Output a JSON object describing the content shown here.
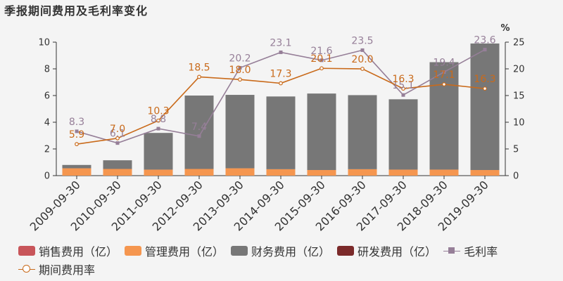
{
  "title": "季报期间费用及毛利率变化",
  "chart_data": {
    "type": "bar",
    "stacked": true,
    "categories": [
      "2009-09-30",
      "2010-09-30",
      "2011-09-30",
      "2012-09-30",
      "2013-09-30",
      "2014-09-30",
      "2015-09-30",
      "2016-09-30",
      "2017-09-30",
      "2018-09-30",
      "2019-09-30"
    ],
    "y_left": {
      "min": 0,
      "max": 10,
      "ticks": [
        0,
        2,
        4,
        6,
        8,
        10
      ]
    },
    "y_right": {
      "min": 0,
      "max": 25,
      "ticks": [
        0,
        5,
        10,
        15,
        20,
        25
      ],
      "label": "%"
    },
    "bar_series": [
      {
        "name": "销售费用（亿）",
        "color": "#c8555a",
        "values": [
          0,
          0,
          0,
          0,
          0,
          0,
          0,
          0,
          0,
          0,
          0
        ]
      },
      {
        "name": "管理费用（亿）",
        "color": "#f5964f",
        "values": [
          0.55,
          0.5,
          0.45,
          0.5,
          0.55,
          0.48,
          0.42,
          0.48,
          0.45,
          0.45,
          0.42
        ]
      },
      {
        "name": "财务费用（亿）",
        "color": "#777777",
        "values": [
          0.25,
          0.65,
          2.75,
          5.5,
          5.5,
          5.45,
          5.73,
          5.55,
          5.27,
          8.05,
          9.48
        ]
      },
      {
        "name": "研发费用（亿）",
        "color": "#7b2a2a",
        "values": [
          0,
          0,
          0,
          0,
          0,
          0,
          0,
          0,
          0,
          0,
          0
        ]
      }
    ],
    "line_series": [
      {
        "name": "毛利率",
        "color": "#967f98",
        "axis": "right",
        "marker": "square",
        "values": [
          8.3,
          6.1,
          8.8,
          7.4,
          20.2,
          23.1,
          21.6,
          23.5,
          15.1,
          19.4,
          23.6
        ],
        "labels": [
          "8.3",
          "6.1",
          "8.8",
          "7.4",
          "20.2",
          "23.1",
          "21.6",
          "23.5",
          "15.1",
          "19.4",
          "23.6"
        ]
      },
      {
        "name": "期间费用率",
        "color": "#c96a1a",
        "axis": "right",
        "marker": "circle",
        "values": [
          5.9,
          7.0,
          10.3,
          18.5,
          18.0,
          17.3,
          20.1,
          20.0,
          16.3,
          17.1,
          16.3
        ],
        "labels": [
          "5.9",
          "7.0",
          "10.3",
          "18.5",
          "18.0",
          "17.3",
          "20.1",
          "20.0",
          "16.3",
          "17.1",
          "16.3"
        ]
      }
    ]
  },
  "legend": {
    "items": [
      {
        "label": "销售费用（亿）",
        "color": "#c8555a",
        "kind": "bar"
      },
      {
        "label": "管理费用（亿）",
        "color": "#f5964f",
        "kind": "bar"
      },
      {
        "label": "财务费用（亿）",
        "color": "#777777",
        "kind": "bar"
      },
      {
        "label": "研发费用（亿）",
        "color": "#7b2a2a",
        "kind": "bar"
      },
      {
        "label": "毛利率",
        "color": "#967f98",
        "kind": "line-square"
      },
      {
        "label": "期间费用率",
        "color": "#c96a1a",
        "kind": "line-circle"
      }
    ]
  }
}
